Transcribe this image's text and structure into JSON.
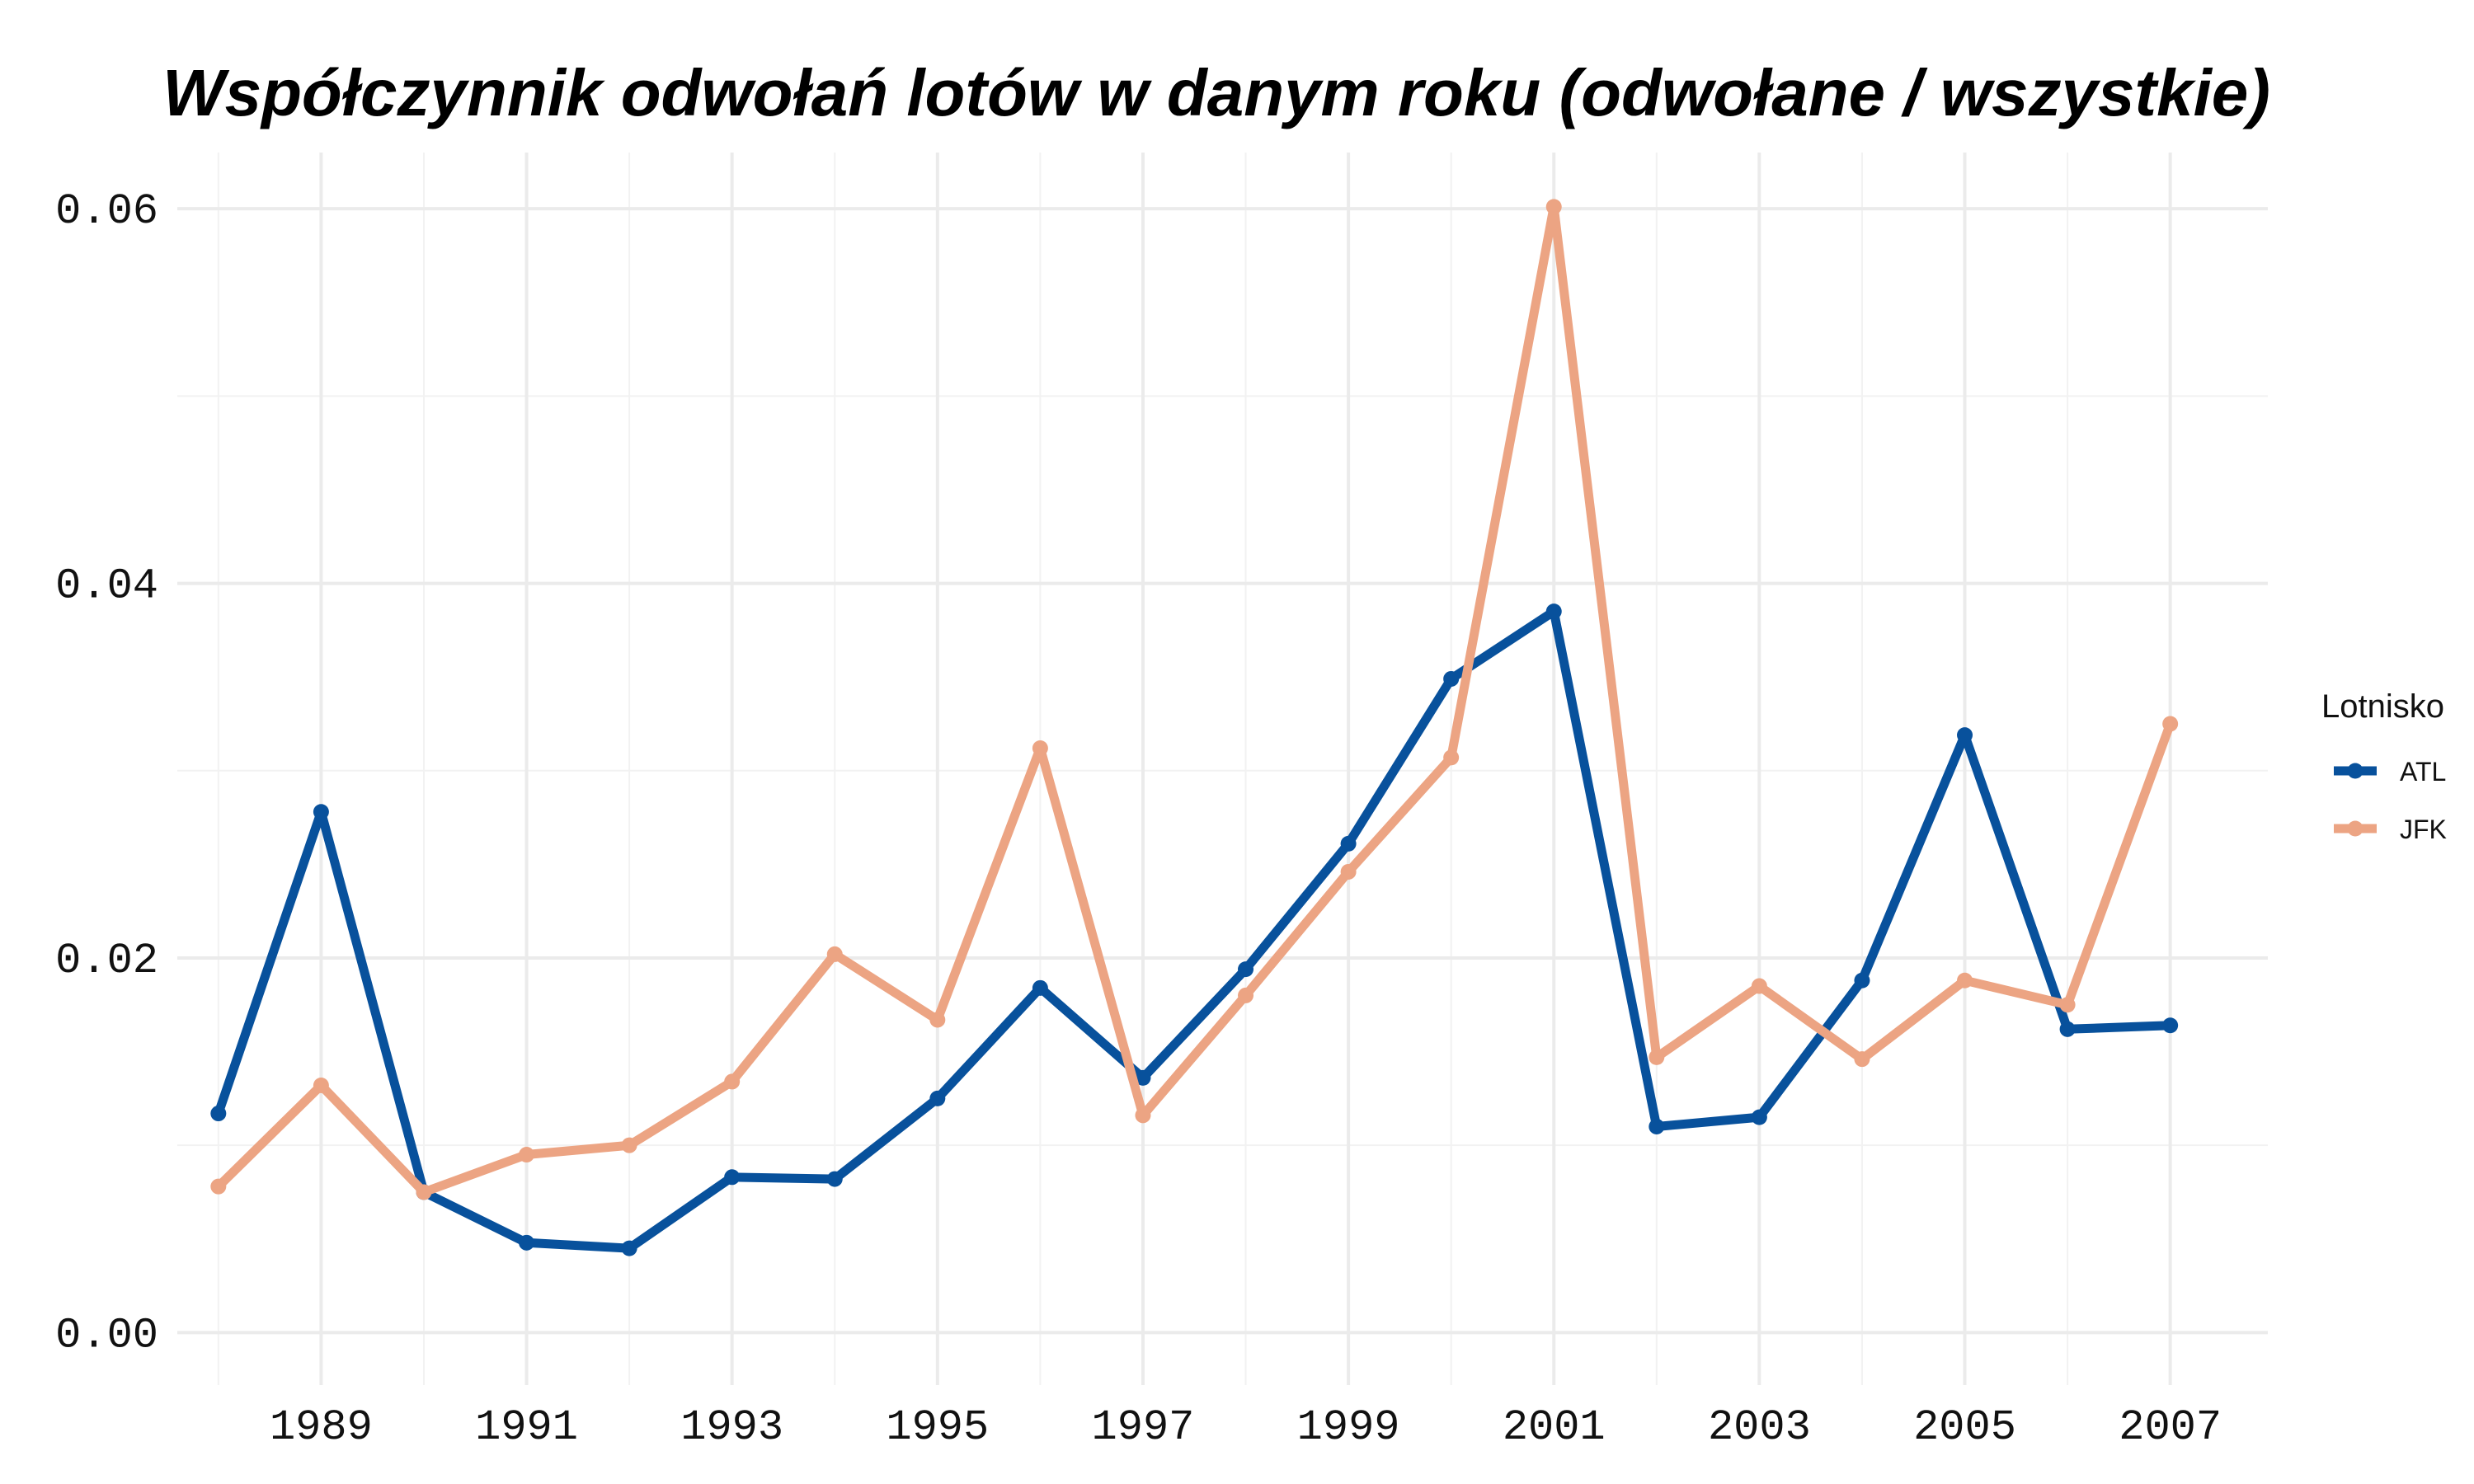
{
  "chart_data": {
    "type": "line",
    "title": "Współczynnik odwołań lotów w danym roku (odwołane / wszystkie)",
    "xlabel": "",
    "ylabel": "",
    "xlim": [
      1987.6,
      2007.95
    ],
    "ylim": [
      -0.0028,
      0.063
    ],
    "x": [
      1988,
      1989,
      1990,
      1991,
      1992,
      1993,
      1994,
      1995,
      1996,
      1997,
      1998,
      1999,
      2000,
      2001,
      2002,
      2003,
      2004,
      2005,
      2006,
      2007
    ],
    "x_ticks": [
      1989,
      1991,
      1993,
      1995,
      1997,
      1999,
      2001,
      2003,
      2005,
      2007
    ],
    "x_tick_labels": [
      "1989",
      "1991",
      "1993",
      "1995",
      "1997",
      "1999",
      "2001",
      "2003",
      "2005",
      "2007"
    ],
    "y_ticks": [
      0.0,
      0.02,
      0.04,
      0.06
    ],
    "y_tick_labels": [
      "0.00",
      "0.02",
      "0.04",
      "0.06"
    ],
    "grid": true,
    "legend_title": "Lotnisko",
    "legend_position": "right",
    "series": [
      {
        "name": "ATL",
        "color": "#08519c",
        "values": [
          0.0117,
          0.0278,
          0.0075,
          0.0048,
          0.0045,
          0.0083,
          0.0082,
          0.0125,
          0.0184,
          0.0136,
          0.0194,
          0.0261,
          0.0349,
          0.0385,
          0.011,
          0.0115,
          0.0188,
          0.0319,
          0.0162,
          0.0164
        ]
      },
      {
        "name": "JFK",
        "color": "#eca483",
        "values": [
          0.0078,
          0.0132,
          0.0075,
          0.0095,
          0.01,
          0.0134,
          0.0202,
          0.0167,
          0.0312,
          0.0116,
          0.018,
          0.0246,
          0.0307,
          0.0601,
          0.0147,
          0.0185,
          0.0146,
          0.0188,
          0.0175,
          0.0325
        ]
      }
    ]
  }
}
